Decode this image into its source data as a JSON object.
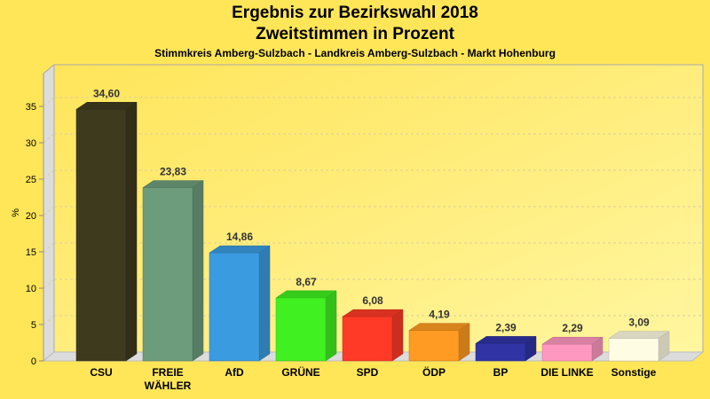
{
  "chart_data": {
    "type": "bar",
    "title": "Ergebnis zur Bezirkswahl 2018",
    "subtitle": "Zweitstimmen in Prozent",
    "caption": "Stimmkreis Amberg-Sulzbach - Landkreis Amberg-Sulzbach - Markt Hohenburg",
    "xlabel": "",
    "ylabel": "%",
    "ylim": [
      0,
      38
    ],
    "yticks": [
      0,
      5,
      10,
      15,
      20,
      25,
      30,
      35
    ],
    "grid": true,
    "three_d": true,
    "categories": [
      [
        "CSU"
      ],
      [
        "FREIE",
        "WÄHLER"
      ],
      [
        "AfD"
      ],
      [
        "GRÜNE"
      ],
      [
        "SPD"
      ],
      [
        "ÖDP"
      ],
      [
        "BP"
      ],
      [
        "DIE LINKE"
      ],
      [
        "Sonstige"
      ]
    ],
    "values": [
      34.6,
      23.83,
      14.86,
      8.67,
      6.08,
      4.19,
      2.39,
      2.29,
      3.09
    ],
    "value_labels": [
      "34,60",
      "23,83",
      "14,86",
      "8,67",
      "6,08",
      "4,19",
      "2,39",
      "2,29",
      "3,09"
    ],
    "colors": [
      "#3E3A1E",
      "#6C9C7C",
      "#3B9BE0",
      "#40F020",
      "#FF3A26",
      "#FF9A22",
      "#2F33A4",
      "#FF98C0",
      "#FFFCE4"
    ]
  },
  "colors": {
    "background": "#FFE658",
    "plot_back_top": "#FFE55A",
    "plot_back_bottom": "#FFF6A0",
    "wall": "#DCDCDC",
    "grid": "#D8CFA0"
  }
}
